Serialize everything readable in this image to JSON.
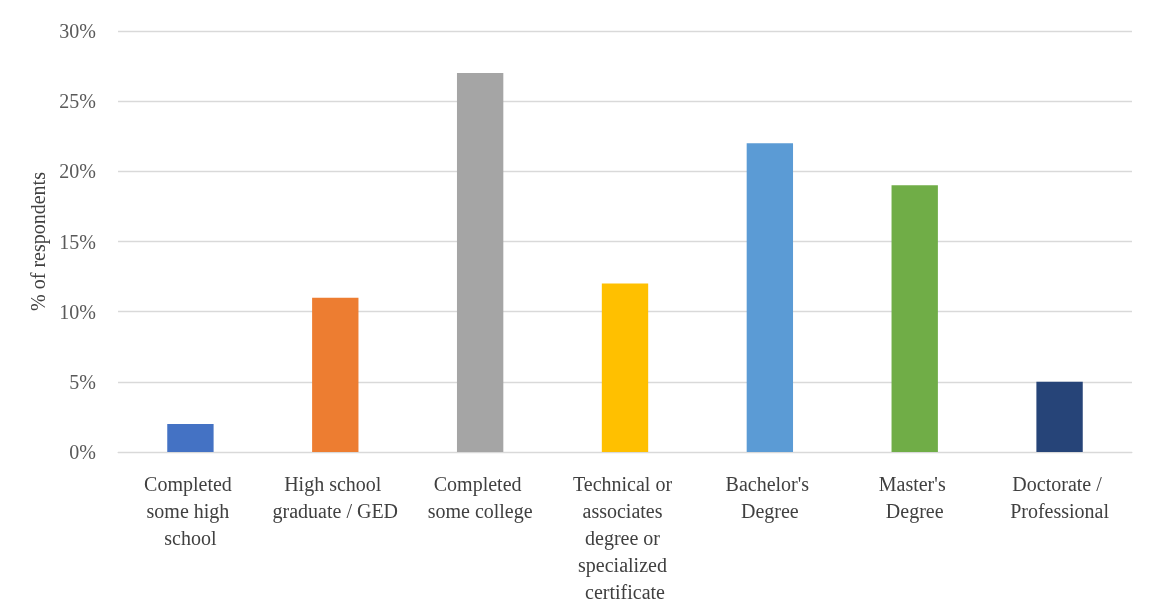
{
  "chart_data": {
    "type": "bar",
    "ylabel": "% of respondents",
    "categories": [
      "Completed some high school",
      "High school graduate / GED",
      "Completed some college",
      "Technical or associates degree or specialized certificate",
      "Bachelor's Degree",
      "Master's Degree",
      "Doctorate / Professional"
    ],
    "values": [
      2,
      11,
      27,
      12,
      22,
      19,
      5
    ],
    "colors": [
      "#4472c4",
      "#ed7d31",
      "#a5a5a5",
      "#ffc000",
      "#5b9bd5",
      "#70ad47",
      "#264478"
    ],
    "ylim": [
      0,
      30
    ],
    "yticks": [
      {
        "value": 0,
        "label": "0%"
      },
      {
        "value": 5,
        "label": "5%"
      },
      {
        "value": 10,
        "label": "10%"
      },
      {
        "value": 15,
        "label": "15%"
      },
      {
        "value": 20,
        "label": "20%"
      },
      {
        "value": 25,
        "label": "25%"
      },
      {
        "value": 30,
        "label": "30%"
      }
    ],
    "grid": "y"
  }
}
